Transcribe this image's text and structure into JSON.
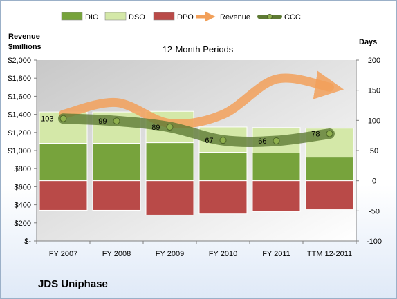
{
  "company": "JDS Uniphase",
  "chart_data": {
    "type": "bar",
    "title": "12-Month Periods",
    "categories": [
      "FY 2007",
      "FY 2008",
      "FY 2009",
      "FY 2010",
      "FY 2011",
      "TTM 12-2011"
    ],
    "left_axis": {
      "label_line1": "Revenue",
      "label_line2": "$millions",
      "ylim": [
        0,
        2000
      ],
      "ticks": [
        0,
        200,
        400,
        600,
        800,
        1000,
        1200,
        1400,
        1600,
        1800,
        2000
      ],
      "tick_labels": [
        "$-",
        "$200",
        "$400",
        "$600",
        "$800",
        "$1,000",
        "$1,200",
        "$1,400",
        "$1,600",
        "$1,800",
        "$2,000"
      ]
    },
    "right_axis": {
      "label": "Days",
      "ylim": [
        -100,
        200
      ],
      "ticks": [
        -100,
        -50,
        0,
        50,
        100,
        150,
        200
      ],
      "tick_labels": [
        "-100",
        "-50",
        "0",
        "50",
        "100",
        "150",
        "200"
      ]
    },
    "legend_position": "top",
    "series": [
      {
        "name": "DIO",
        "type": "stacked-bar",
        "axis": "right",
        "color": "#77a33c",
        "values": [
          62,
          62,
          63,
          47,
          46,
          39
        ]
      },
      {
        "name": "DSO",
        "type": "stacked-bar",
        "axis": "right",
        "color": "#d4e8a8",
        "values": [
          52,
          52,
          52,
          42,
          42,
          48
        ]
      },
      {
        "name": "DPO",
        "type": "bar-negative",
        "axis": "right",
        "color": "#b94a48",
        "values": [
          -49,
          -49,
          -57,
          -55,
          -51,
          -48
        ]
      },
      {
        "name": "Revenue",
        "type": "line",
        "axis": "left",
        "color": "#f2a05a",
        "values": [
          1400,
          1530,
          1300,
          1400,
          1790,
          1700
        ]
      },
      {
        "name": "CCC",
        "type": "line",
        "axis": "right",
        "color": "#5e7a34",
        "values": [
          103,
          99,
          89,
          67,
          66,
          78
        ]
      }
    ],
    "ccc_labels": [
      "103",
      "99",
      "89",
      "67",
      "66",
      "78"
    ],
    "grid": false
  }
}
